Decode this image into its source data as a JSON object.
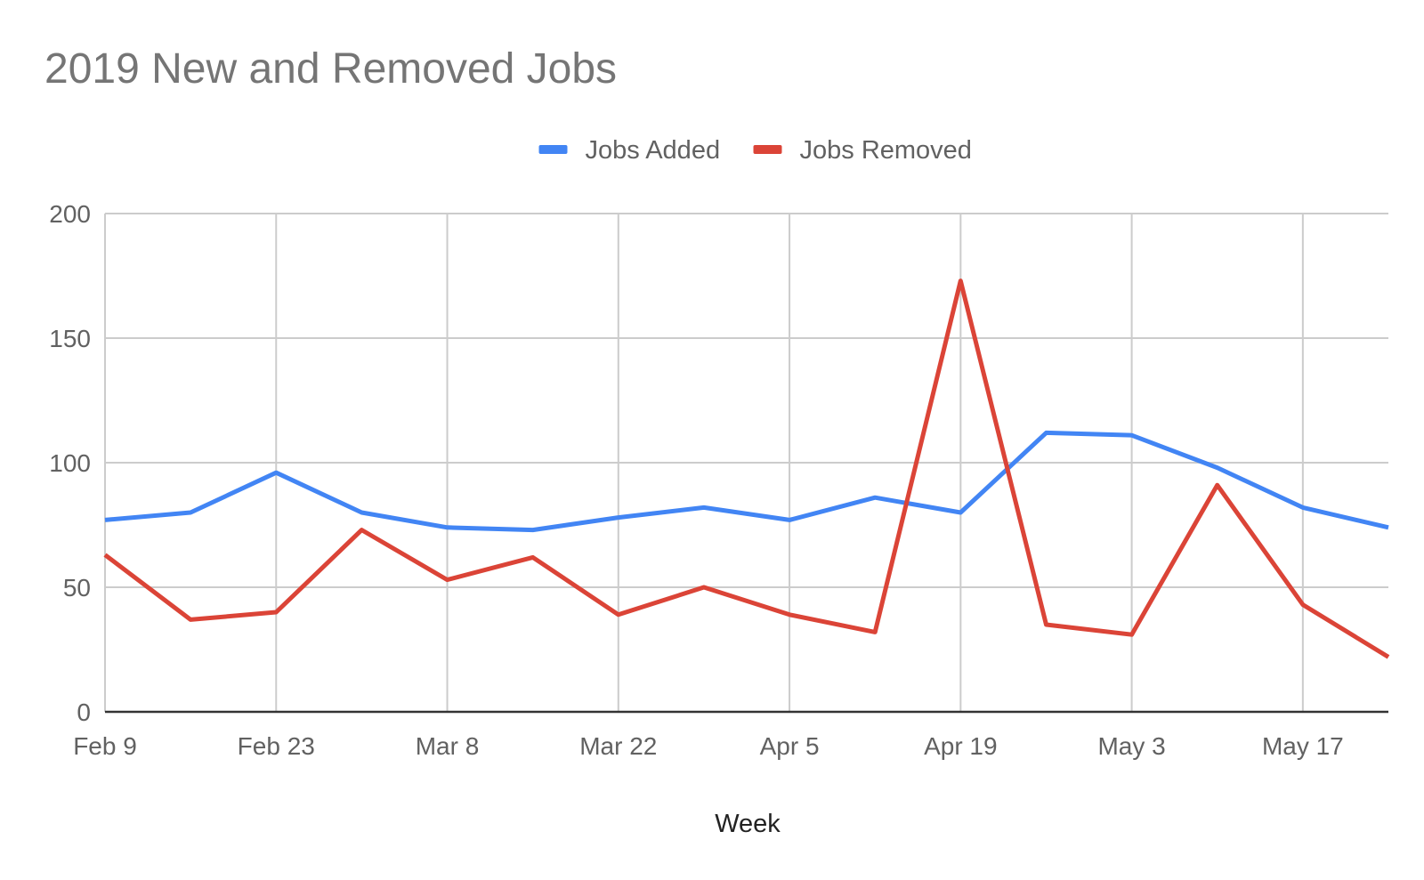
{
  "chart_data": {
    "type": "line",
    "title": "2019 New and Removed Jobs",
    "xlabel": "Week",
    "ylabel": "",
    "ylim": [
      0,
      200
    ],
    "y_ticks": [
      0,
      50,
      100,
      150,
      200
    ],
    "x": [
      "Feb 9",
      "Feb 16",
      "Feb 23",
      "Mar 1",
      "Mar 8",
      "Mar 15",
      "Mar 22",
      "Mar 29",
      "Apr 5",
      "Apr 12",
      "Apr 19",
      "Apr 26",
      "May 3",
      "May 10",
      "May 17",
      "May 24"
    ],
    "x_tick_labels": [
      "Feb 9",
      "Feb 23",
      "Mar 8",
      "Mar 22",
      "Apr 5",
      "Apr 19",
      "May 3",
      "May 17"
    ],
    "grid": true,
    "legend_position": "top",
    "series": [
      {
        "name": "Jobs Added",
        "color": "#4285F4",
        "values": [
          77,
          80,
          96,
          80,
          74,
          73,
          78,
          82,
          77,
          86,
          80,
          112,
          111,
          98,
          82,
          74
        ]
      },
      {
        "name": "Jobs Removed",
        "color": "#DB4437",
        "values": [
          63,
          37,
          40,
          73,
          53,
          62,
          39,
          50,
          39,
          32,
          173,
          35,
          31,
          91,
          43,
          22
        ]
      }
    ]
  }
}
